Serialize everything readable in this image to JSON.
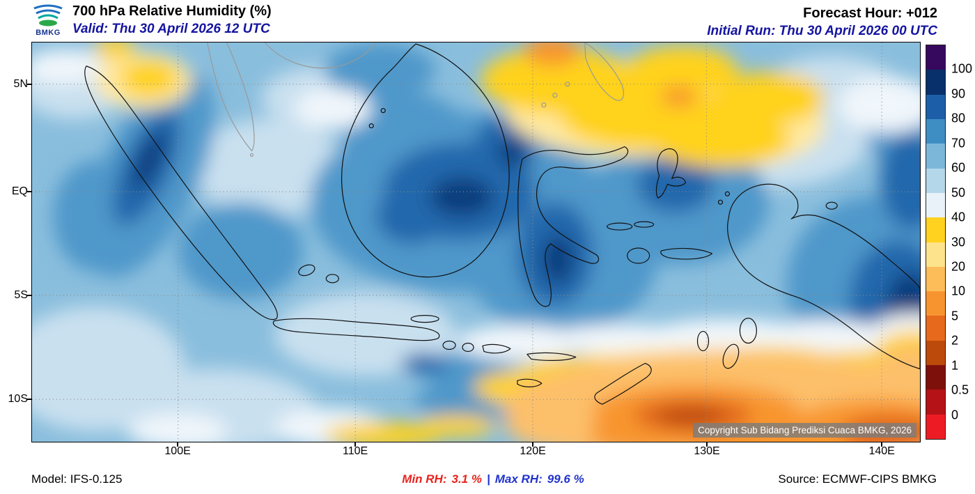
{
  "theme": {
    "header_blue": "#1414a0",
    "min_red": "#e8231d",
    "max_blue": "#2233cc"
  },
  "header": {
    "logo_text": "BMKG",
    "title": "700 hPa Relative Humidity (%)",
    "valid_label": "Valid: Thu 30 April 2026 12 UTC",
    "forecast_hour_label": "Forecast Hour: +012",
    "initial_run_label": "Initial Run: Thu 30 April 2026 00 UTC"
  },
  "map": {
    "lat_ticks": [
      "5N",
      "EQ",
      "5S",
      "10S"
    ],
    "lon_ticks": [
      "100E",
      "110E",
      "120E",
      "130E",
      "140E"
    ],
    "copyright_note": "Copyright Sub Bidang Prediksi Cuaca BMKG, 2026"
  },
  "colorbar": {
    "tick_labels": [
      "100",
      "90",
      "80",
      "70",
      "60",
      "50",
      "40",
      "30",
      "20",
      "10",
      "5",
      "2",
      "1",
      "0.5",
      "0"
    ],
    "segment_colors_top_to_bottom": [
      "#37095e",
      "#08306b",
      "#1c5fa8",
      "#3e8ec4",
      "#7cb7da",
      "#b5d7ea",
      "#e9f2f8",
      "#ffd21f",
      "#fee38d",
      "#fdbd59",
      "#f89430",
      "#e6691c",
      "#bc4a0a",
      "#7e100c",
      "#b51218",
      "#ed1c24"
    ]
  },
  "footer": {
    "model_label": "Model: IFS-0.125",
    "min_rh_label": "Min RH:",
    "min_rh_value": "3.1 %",
    "divider": "|",
    "max_rh_label": "Max RH:",
    "max_rh_value": "99.6 %",
    "source_label": "Source: ECMWF-CIPS BMKG"
  },
  "chart_data": {
    "type": "heatmap",
    "title": "700 hPa Relative Humidity (%)",
    "parameter": "Relative Humidity",
    "pressure_level": "700 hPa",
    "units": "%",
    "valid_time": "Thu 30 April 2026 12 UTC",
    "initial_run": "Thu 30 April 2026 00 UTC",
    "forecast_hour": "+012",
    "model": "IFS-0.125",
    "source": "ECMWF-CIPS BMKG",
    "min_rh_percent": 3.1,
    "max_rh_percent": 99.6,
    "contour_levels": [
      0,
      0.5,
      1,
      2,
      5,
      10,
      20,
      30,
      40,
      50,
      60,
      70,
      80,
      90,
      100
    ],
    "level_colors_low_to_high": [
      "#ed1c24",
      "#b51218",
      "#7e100c",
      "#bc4a0a",
      "#e6691c",
      "#f89430",
      "#fdbd59",
      "#fee38d",
      "#ffd21f",
      "#e9f2f8",
      "#b5d7ea",
      "#7cb7da",
      "#3e8ec4",
      "#1c5fa8",
      "#08306b",
      "#37095e"
    ],
    "x_tick_labels": [
      "100E",
      "110E",
      "120E",
      "130E",
      "140E"
    ],
    "y_tick_labels": [
      "5N",
      "EQ",
      "5S",
      "10S"
    ],
    "legend_position": "right",
    "grid": "dashed lat/lon graticule",
    "region": "Indonesia"
  }
}
